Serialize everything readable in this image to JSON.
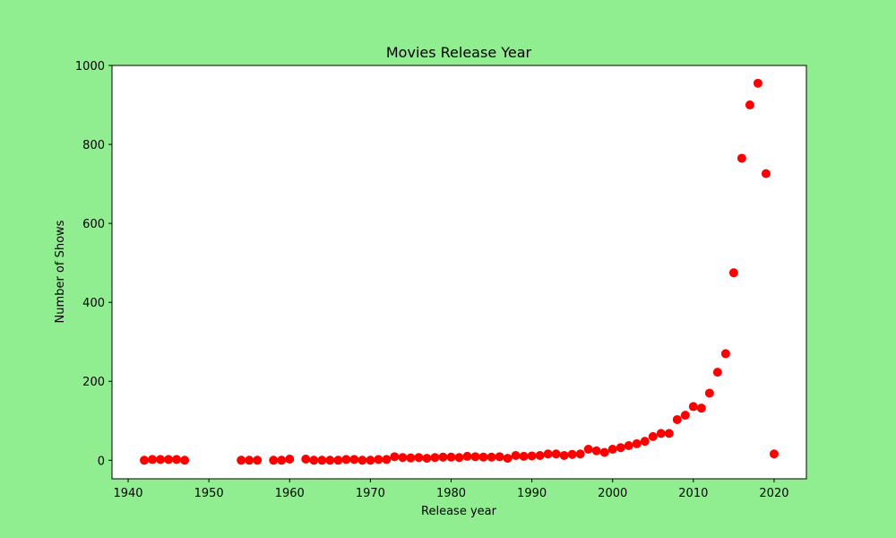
{
  "colors": {
    "background": "#90ee90",
    "plot_area": "#ffffff",
    "marker": "#ff0000"
  },
  "chart_data": {
    "type": "scatter",
    "title": "Movies Release Year",
    "xlabel": "Release year",
    "ylabel": "Number of Shows",
    "xlim": [
      1938,
      2024
    ],
    "ylim": [
      -47,
      1000
    ],
    "xticks": [
      1940,
      1950,
      1960,
      1970,
      1980,
      1990,
      2000,
      2010,
      2020
    ],
    "yticks": [
      0,
      200,
      400,
      600,
      800,
      1000
    ],
    "grid": false,
    "legend": "none",
    "x": [
      1942,
      1943,
      1944,
      1945,
      1946,
      1947,
      1954,
      1955,
      1956,
      1958,
      1959,
      1960,
      1962,
      1963,
      1964,
      1965,
      1966,
      1967,
      1968,
      1969,
      1970,
      1971,
      1972,
      1973,
      1974,
      1975,
      1976,
      1977,
      1978,
      1979,
      1980,
      1981,
      1982,
      1983,
      1984,
      1985,
      1986,
      1987,
      1988,
      1989,
      1990,
      1991,
      1992,
      1993,
      1994,
      1995,
      1996,
      1997,
      1998,
      1999,
      2000,
      2001,
      2002,
      2003,
      2004,
      2005,
      2006,
      2007,
      2008,
      2009,
      2010,
      2011,
      2012,
      2013,
      2014,
      2015,
      2016,
      2017,
      2018,
      2019,
      2020
    ],
    "y": [
      0,
      2,
      2,
      2,
      2,
      0,
      0,
      0,
      0,
      0,
      0,
      3,
      3,
      0,
      0,
      0,
      0,
      2,
      2,
      0,
      0,
      2,
      2,
      9,
      7,
      6,
      7,
      5,
      7,
      8,
      8,
      7,
      10,
      9,
      8,
      8,
      9,
      5,
      12,
      10,
      11,
      12,
      16,
      16,
      12,
      15,
      16,
      28,
      24,
      20,
      28,
      32,
      37,
      42,
      48,
      60,
      68,
      68,
      103,
      114,
      136,
      132,
      170,
      223,
      270,
      475,
      765,
      900,
      955,
      726,
      16
    ]
  }
}
